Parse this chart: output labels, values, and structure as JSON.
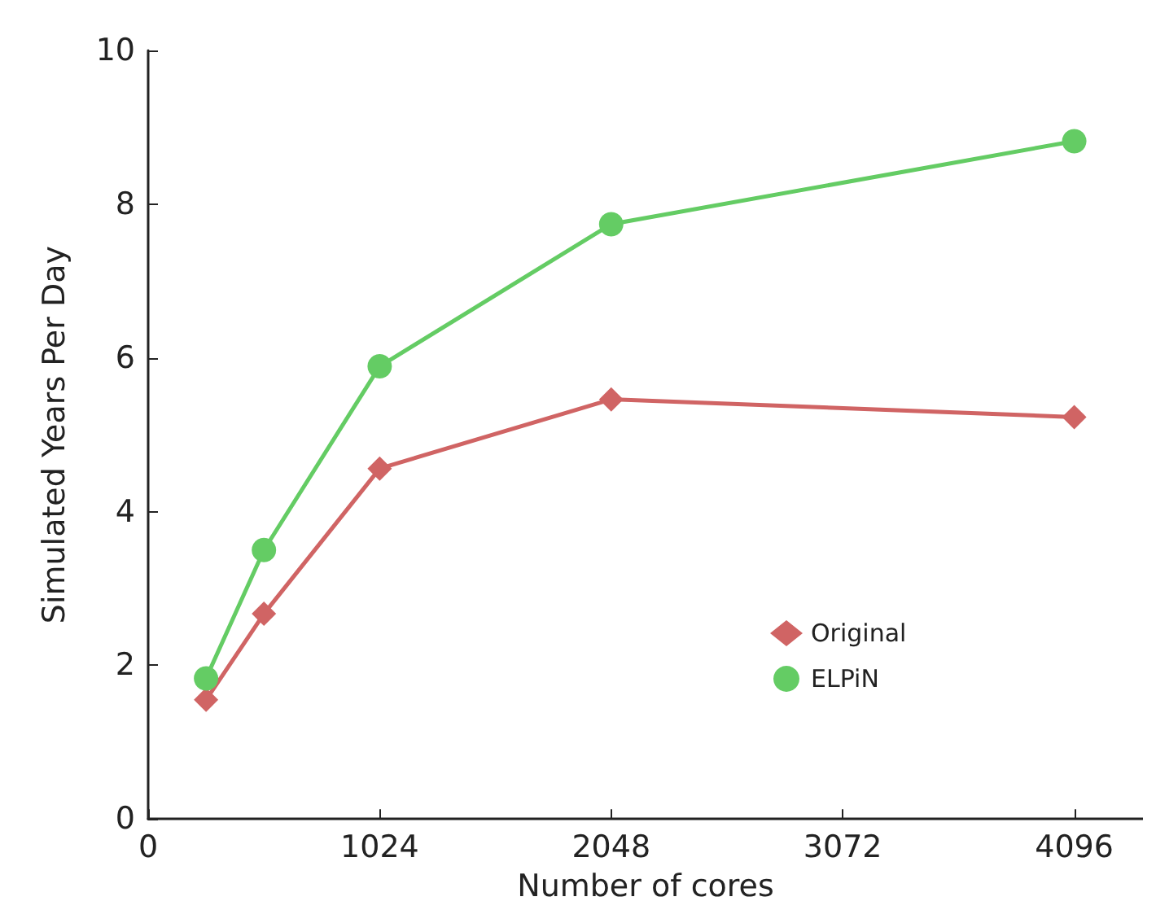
{
  "chart_data": {
    "type": "line",
    "xlabel": "Number of cores",
    "ylabel": "Simulated Years Per Day",
    "x": [
      256,
      512,
      1024,
      2048,
      4096
    ],
    "series": [
      {
        "name": "Original",
        "color": "#d06464",
        "marker": "diamond",
        "values": [
          1.55,
          2.67,
          4.56,
          5.46,
          5.23
        ]
      },
      {
        "name": "ELPiN",
        "color": "#64cc64",
        "marker": "circle",
        "values": [
          1.83,
          3.5,
          5.89,
          7.74,
          8.82
        ]
      }
    ],
    "xlim": [
      0,
      4400
    ],
    "xticks": [
      0,
      1024,
      2048,
      3072,
      4096
    ],
    "ylim": [
      0,
      10
    ],
    "yticks": [
      0,
      2,
      4,
      6,
      8,
      10
    ],
    "grid": false,
    "legend": "bottom right"
  }
}
